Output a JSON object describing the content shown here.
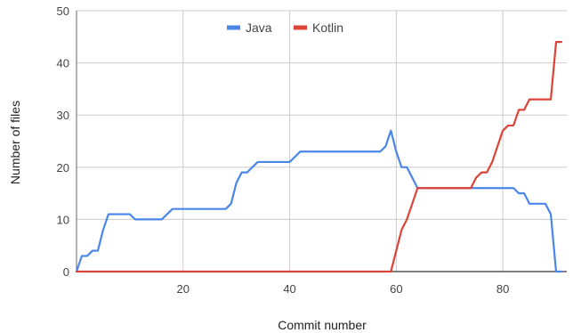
{
  "chart_data": {
    "type": "line",
    "title": "",
    "xlabel": "Commit number",
    "ylabel": "Number of files",
    "xlim": [
      0,
      92
    ],
    "ylim": [
      0,
      50
    ],
    "x_ticks": [
      20,
      40,
      60,
      80
    ],
    "y_ticks": [
      0,
      10,
      20,
      30,
      40,
      50
    ],
    "x_tick_labels": [
      "20",
      "40",
      "60",
      "80"
    ],
    "y_tick_labels": [
      "0",
      "10",
      "20",
      "30",
      "40",
      "50"
    ],
    "grid": true,
    "legend_position": "top-center",
    "series": [
      {
        "name": "Java",
        "color": "#4a86e8",
        "points": [
          [
            0,
            0
          ],
          [
            1,
            3
          ],
          [
            2,
            3
          ],
          [
            3,
            4
          ],
          [
            4,
            4
          ],
          [
            5,
            8
          ],
          [
            6,
            11
          ],
          [
            7,
            11
          ],
          [
            8,
            11
          ],
          [
            9,
            11
          ],
          [
            10,
            11
          ],
          [
            11,
            10
          ],
          [
            12,
            10
          ],
          [
            13,
            10
          ],
          [
            14,
            10
          ],
          [
            15,
            10
          ],
          [
            16,
            10
          ],
          [
            17,
            11
          ],
          [
            18,
            12
          ],
          [
            19,
            12
          ],
          [
            20,
            12
          ],
          [
            21,
            12
          ],
          [
            22,
            12
          ],
          [
            23,
            12
          ],
          [
            24,
            12
          ],
          [
            25,
            12
          ],
          [
            26,
            12
          ],
          [
            27,
            12
          ],
          [
            28,
            12
          ],
          [
            29,
            13
          ],
          [
            30,
            17
          ],
          [
            31,
            19
          ],
          [
            32,
            19
          ],
          [
            33,
            20
          ],
          [
            34,
            21
          ],
          [
            35,
            21
          ],
          [
            36,
            21
          ],
          [
            37,
            21
          ],
          [
            38,
            21
          ],
          [
            39,
            21
          ],
          [
            40,
            21
          ],
          [
            41,
            22
          ],
          [
            42,
            23
          ],
          [
            43,
            23
          ],
          [
            44,
            23
          ],
          [
            45,
            23
          ],
          [
            46,
            23
          ],
          [
            47,
            23
          ],
          [
            48,
            23
          ],
          [
            49,
            23
          ],
          [
            50,
            23
          ],
          [
            51,
            23
          ],
          [
            52,
            23
          ],
          [
            53,
            23
          ],
          [
            54,
            23
          ],
          [
            55,
            23
          ],
          [
            56,
            23
          ],
          [
            57,
            23
          ],
          [
            58,
            24
          ],
          [
            59,
            27
          ],
          [
            60,
            23
          ],
          [
            61,
            20
          ],
          [
            62,
            20
          ],
          [
            63,
            18
          ],
          [
            64,
            16
          ],
          [
            65,
            16
          ],
          [
            66,
            16
          ],
          [
            67,
            16
          ],
          [
            68,
            16
          ],
          [
            69,
            16
          ],
          [
            70,
            16
          ],
          [
            71,
            16
          ],
          [
            72,
            16
          ],
          [
            73,
            16
          ],
          [
            74,
            16
          ],
          [
            75,
            16
          ],
          [
            76,
            16
          ],
          [
            77,
            16
          ],
          [
            78,
            16
          ],
          [
            79,
            16
          ],
          [
            80,
            16
          ],
          [
            81,
            16
          ],
          [
            82,
            16
          ],
          [
            83,
            15
          ],
          [
            84,
            15
          ],
          [
            85,
            13
          ],
          [
            86,
            13
          ],
          [
            87,
            13
          ],
          [
            88,
            13
          ],
          [
            89,
            11
          ],
          [
            90,
            0
          ],
          [
            91,
            0
          ]
        ]
      },
      {
        "name": "Kotlin",
        "color": "#db4437",
        "points": [
          [
            0,
            0
          ],
          [
            59,
            0
          ],
          [
            60,
            4
          ],
          [
            61,
            8
          ],
          [
            62,
            10
          ],
          [
            63,
            13
          ],
          [
            64,
            16
          ],
          [
            65,
            16
          ],
          [
            66,
            16
          ],
          [
            67,
            16
          ],
          [
            68,
            16
          ],
          [
            69,
            16
          ],
          [
            70,
            16
          ],
          [
            71,
            16
          ],
          [
            72,
            16
          ],
          [
            73,
            16
          ],
          [
            74,
            16
          ],
          [
            75,
            18
          ],
          [
            76,
            19
          ],
          [
            77,
            19
          ],
          [
            78,
            21
          ],
          [
            79,
            24
          ],
          [
            80,
            27
          ],
          [
            81,
            28
          ],
          [
            82,
            28
          ],
          [
            83,
            31
          ],
          [
            84,
            31
          ],
          [
            85,
            33
          ],
          [
            86,
            33
          ],
          [
            87,
            33
          ],
          [
            88,
            33
          ],
          [
            89,
            33
          ],
          [
            90,
            44
          ],
          [
            91,
            44
          ]
        ]
      }
    ]
  }
}
